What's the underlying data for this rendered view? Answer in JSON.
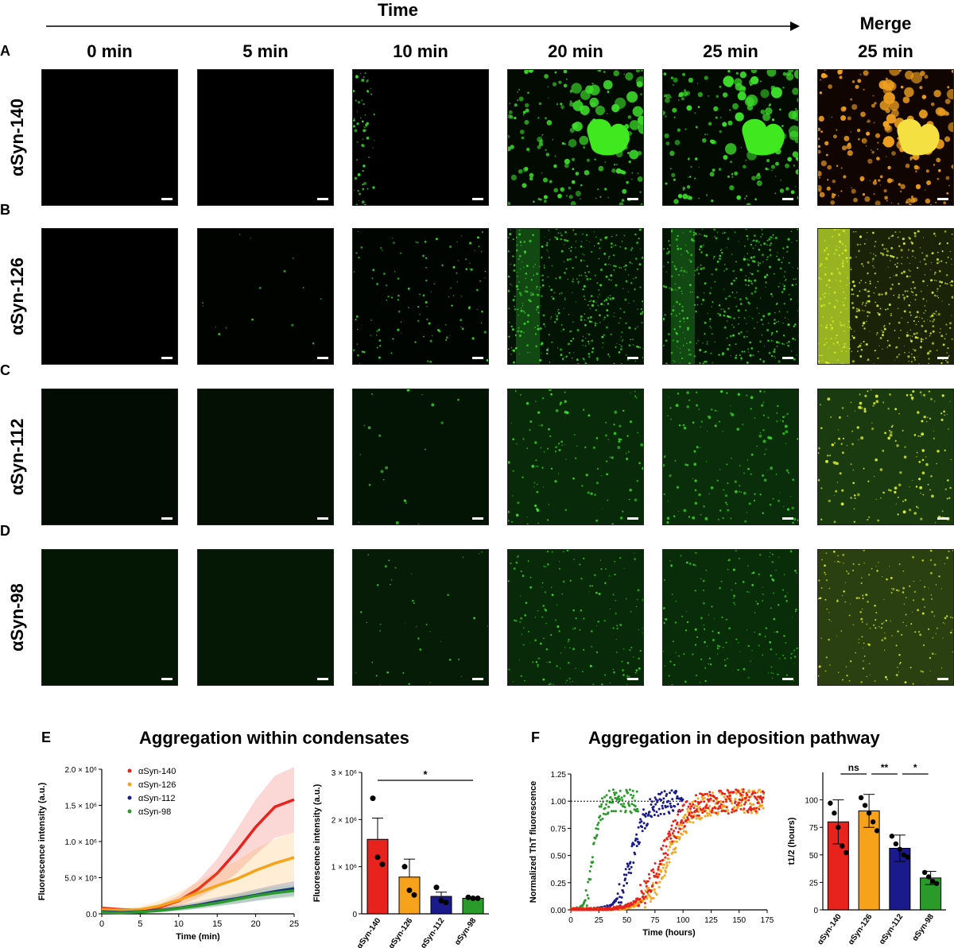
{
  "header": {
    "time_label": "Time",
    "merge_label": "Merge",
    "columns": [
      "0 min",
      "5 min",
      "10 min",
      "20 min",
      "25 min",
      "25 min"
    ]
  },
  "rows": [
    {
      "letter": "A",
      "label": "αSyn-140"
    },
    {
      "letter": "B",
      "label": "αSyn-126"
    },
    {
      "letter": "C",
      "label": "αSyn-112"
    },
    {
      "letter": "D",
      "label": "αSyn-98"
    }
  ],
  "colors": {
    "red": "#e8221c",
    "orange": "#f7a21b",
    "navy": "#1a1a8c",
    "green": "#2a9a2a",
    "micro_green": "#3cdc2a",
    "micro_yellow": "#d8f028",
    "micro_orange": "#f0a020"
  },
  "panel_e": {
    "letter": "E",
    "title": "Aggregation within condensates",
    "chart_data": [
      {
        "type": "line",
        "xlabel": "Time (min)",
        "ylabel": "Fluorescence intensity (a.u.)",
        "xlim": [
          0,
          25
        ],
        "ylim": [
          0,
          2000000
        ],
        "xticks": [
          "0",
          "5",
          "10",
          "15",
          "20",
          "25"
        ],
        "yticks": [
          "0.0",
          "5.0 × 10⁵",
          "1.0 × 10⁶",
          "1.5 × 10⁶",
          "2.0 × 10⁶"
        ],
        "legend": "top-left",
        "x": [
          0,
          2.5,
          5,
          7.5,
          10,
          12.5,
          15,
          17.5,
          20,
          22.5,
          25
        ],
        "series": [
          {
            "name": "αSyn-140",
            "values": [
              80000,
              60000,
              50000,
              90000,
              180000,
              340000,
              560000,
              860000,
              1200000,
              1480000,
              1580000
            ],
            "err": [
              20000,
              20000,
              20000,
              40000,
              70000,
              120000,
              200000,
              300000,
              380000,
              430000,
              450000
            ]
          },
          {
            "name": "αSyn-126",
            "values": [
              60000,
              50000,
              60000,
              110000,
              190000,
              290000,
              390000,
              480000,
              600000,
              700000,
              780000
            ],
            "err": [
              30000,
              30000,
              40000,
              70000,
              110000,
              150000,
              200000,
              250000,
              300000,
              330000,
              360000
            ]
          },
          {
            "name": "αSyn-112",
            "values": [
              30000,
              20000,
              30000,
              50000,
              80000,
              120000,
              170000,
              210000,
              260000,
              310000,
              350000
            ],
            "err": [
              10000,
              10000,
              20000,
              30000,
              40000,
              50000,
              60000,
              70000,
              80000,
              90000,
              100000
            ]
          },
          {
            "name": "αSyn-98",
            "values": [
              20000,
              15000,
              25000,
              45000,
              75000,
              110000,
              150000,
              200000,
              250000,
              290000,
              320000
            ],
            "err": [
              8000,
              8000,
              10000,
              20000,
              30000,
              40000,
              50000,
              60000,
              70000,
              80000,
              90000
            ]
          }
        ]
      },
      {
        "type": "bar",
        "ylabel": "Fluorescence intensity (a.u.)",
        "ylim": [
          0,
          3000000
        ],
        "yticks": [
          "0",
          "1 × 10⁶",
          "2 × 10⁶",
          "3 × 10⁶"
        ],
        "categories": [
          "αSyn-140",
          "αSyn-126",
          "αSyn-112",
          "αSyn-98"
        ],
        "values": [
          1580000,
          780000,
          370000,
          330000
        ],
        "err": [
          450000,
          380000,
          90000,
          20000
        ],
        "points": [
          [
            2450000,
            1200000,
            1050000
          ],
          [
            1000000,
            500000,
            400000
          ],
          [
            560000,
            280000,
            240000
          ],
          [
            350000,
            330000,
            330000
          ]
        ],
        "significance": [
          {
            "from": 0,
            "to": 3,
            "label": "*"
          }
        ]
      }
    ]
  },
  "panel_f": {
    "letter": "F",
    "title": "Aggregation in deposition pathway",
    "chart_data": [
      {
        "type": "scatter",
        "xlabel": "Time (hours)",
        "ylabel": "Normalized ThT fluorescence",
        "xlim": [
          0,
          175
        ],
        "ylim": [
          0,
          1.25
        ],
        "xticks": [
          "0",
          "25",
          "50",
          "75",
          "100",
          "125",
          "150",
          "175"
        ],
        "yticks": [
          "0.00",
          "0.25",
          "0.50",
          "0.75",
          "1.00",
          "1.25"
        ],
        "reference_line": 1.0,
        "series": [
          {
            "name": "",
            "color": "green",
            "t_half": 20,
            "rate": 0.33,
            "x_end": 60
          },
          {
            "name": "",
            "color": "navy",
            "t_half": 55,
            "rate": 0.16,
            "x_end": 100
          },
          {
            "name": "",
            "color": "orange",
            "t_half": 88,
            "rate": 0.1,
            "x_end": 172
          },
          {
            "name": "",
            "color": "red",
            "t_half": 82,
            "rate": 0.1,
            "x_end": 172
          }
        ]
      },
      {
        "type": "bar",
        "ylabel": "t1/2 (hours)",
        "ylim": [
          0,
          125
        ],
        "yticks": [
          "0",
          "25",
          "50",
          "75",
          "100"
        ],
        "categories": [
          "αSyn-140",
          "αSyn-126",
          "αSyn-112",
          "αSyn-98"
        ],
        "values": [
          80,
          90,
          56,
          29
        ],
        "err": [
          20,
          15,
          12,
          6
        ],
        "points": [
          [
            97,
            88,
            75,
            58,
            52
          ],
          [
            102,
            95,
            88,
            80,
            72
          ],
          [
            67,
            60,
            55,
            50,
            48
          ],
          [
            34,
            30,
            26,
            24
          ]
        ],
        "significance": [
          {
            "from": 0,
            "to": 1,
            "label": "ns"
          },
          {
            "from": 1,
            "to": 2,
            "label": "**"
          },
          {
            "from": 2,
            "to": 3,
            "label": "*"
          }
        ]
      }
    ]
  }
}
